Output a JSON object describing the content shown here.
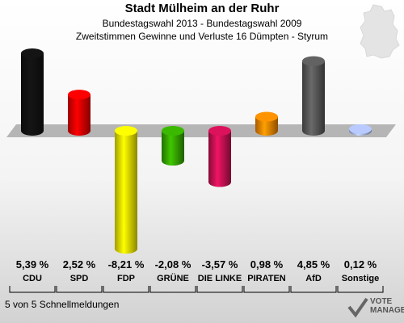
{
  "header": {
    "title": "Stadt Mülheim an der Ruhr",
    "subtitle": "Bundestagswahl 2013 - Bundestagswahl 2009",
    "description": "Zweitstimmen Gewinne und Verluste 16 Dümpten - Styrum"
  },
  "chart_data": {
    "type": "bar",
    "categories": [
      "CDU",
      "SPD",
      "FDP",
      "GRÜNE",
      "DIE LINKE",
      "PIRATEN",
      "AfD",
      "Sonstige"
    ],
    "values": [
      5.39,
      2.52,
      -8.21,
      -2.08,
      -3.57,
      0.98,
      4.85,
      0.12
    ],
    "value_labels": [
      "5,39 %",
      "2,52 %",
      "-8,21 %",
      "-2,08 %",
      "-3,57 %",
      "0,98 %",
      "4,85 %",
      "0,12 %"
    ],
    "colors": [
      "#111111",
      "#e00000",
      "#e8e000",
      "#33a000",
      "#c01050",
      "#f08000",
      "#555555",
      "#a0b0e8"
    ],
    "axis_color": "#b5b5b5"
  },
  "footer": {
    "text": "5 von 5 Schnellmeldungen"
  },
  "logo": {
    "text_line1": "VOTE",
    "text_line2": "MANAGER"
  }
}
